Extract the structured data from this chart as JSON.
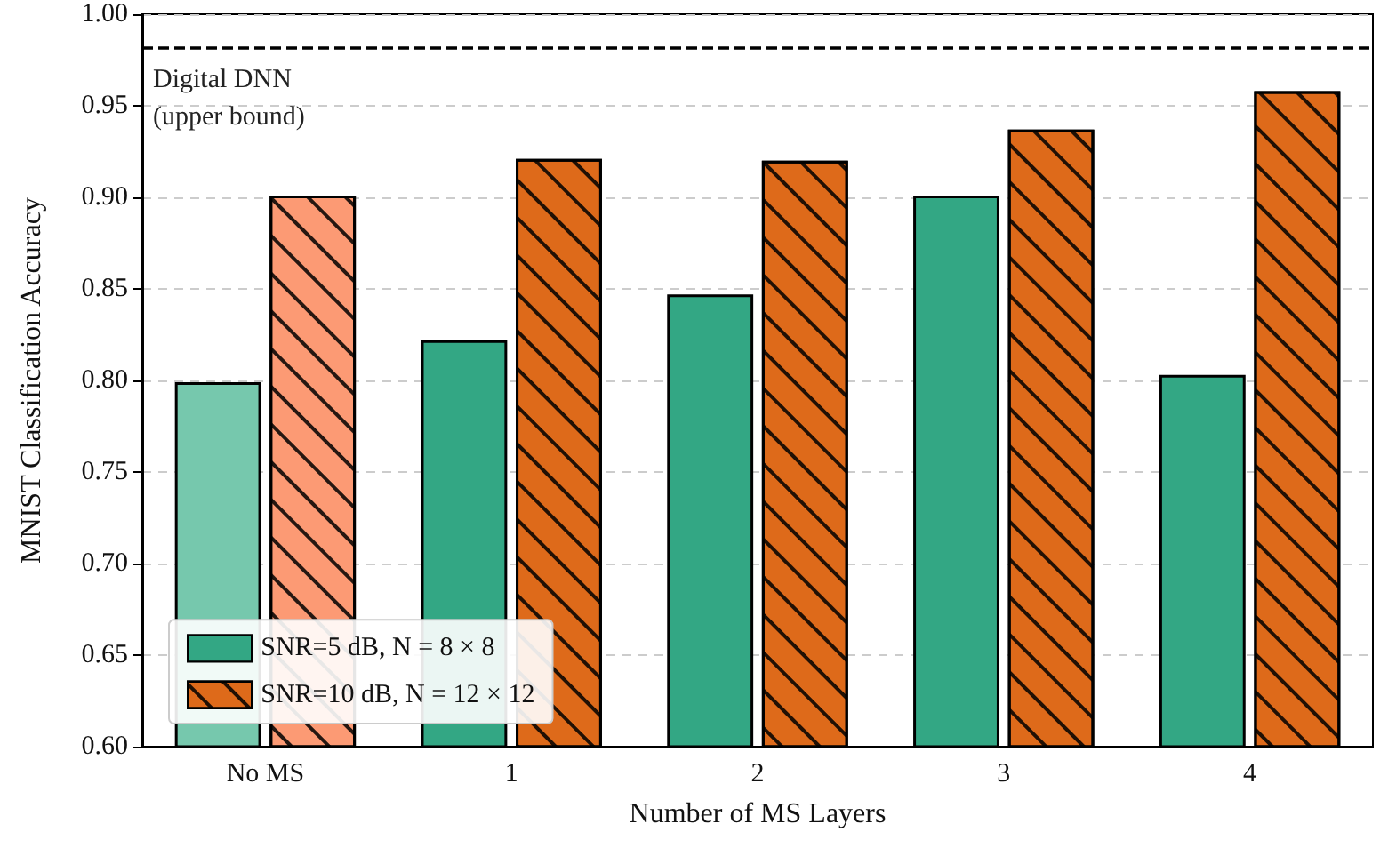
{
  "chart_data": {
    "type": "bar",
    "xlabel": "Number of MS Layers",
    "ylabel": "MNIST Classification Accuracy",
    "categories": [
      "No MS",
      "1",
      "2",
      "3",
      "4"
    ],
    "series": [
      {
        "name": "SNR=5 dB, N = 8 × 8",
        "color": "#33a784",
        "colors": [
          "#76c8ad",
          "#33a784",
          "#33a784",
          "#33a784",
          "#33a784"
        ],
        "values": [
          0.799,
          0.822,
          0.847,
          0.901,
          0.803
        ]
      },
      {
        "name": "SNR=10 dB, N = 12 × 12",
        "color": "#de6a1a",
        "colors": [
          "#fc9a74",
          "#de6a1a",
          "#de6a1a",
          "#de6a1a",
          "#de6a1a"
        ],
        "values": [
          0.901,
          0.921,
          0.92,
          0.937,
          0.958
        ]
      }
    ],
    "ylim": [
      0.6,
      1.0
    ],
    "yticks": [
      {
        "value": 0.6,
        "label": "0.60"
      },
      {
        "value": 0.65,
        "label": "0.65"
      },
      {
        "value": 0.7,
        "label": "0.70"
      },
      {
        "value": 0.75,
        "label": "0.75"
      },
      {
        "value": 0.8,
        "label": "0.80"
      },
      {
        "value": 0.85,
        "label": "0.85"
      },
      {
        "value": 0.9,
        "label": "0.90"
      },
      {
        "value": 0.95,
        "label": "0.95"
      },
      {
        "value": 1.0,
        "label": "1.00"
      }
    ],
    "ref_lines": [
      {
        "axis": "y",
        "value": 0.982,
        "label": "Digital DNN\n(upper bound)",
        "color": "#000000",
        "line_style": "dashed"
      }
    ],
    "grid": "y",
    "legend": "bottom left"
  }
}
